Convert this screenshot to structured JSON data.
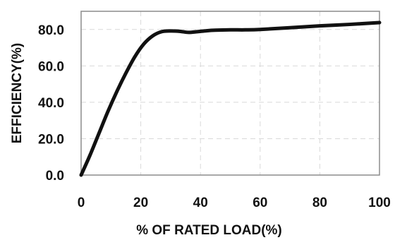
{
  "chart_data": {
    "type": "line",
    "title": "",
    "xlabel": "% OF RATED LOAD(%)",
    "ylabel": "EFFICIENCY(%)",
    "xlim": [
      0,
      100
    ],
    "ylim": [
      0,
      90
    ],
    "x_ticks": [
      0,
      20,
      40,
      60,
      80,
      100
    ],
    "x_tick_labels": [
      "0",
      "20",
      "40",
      "60",
      "80",
      "100"
    ],
    "y_ticks": [
      0,
      20,
      40,
      60,
      80
    ],
    "y_tick_labels": [
      "0.0",
      "20.0",
      "40.0",
      "60.0",
      "80.0"
    ],
    "grid": true,
    "legend": "none",
    "series": [
      {
        "color": "#111111",
        "x": [
          0,
          3,
          6,
          9,
          12,
          15,
          18,
          21,
          24,
          27,
          30,
          33,
          36,
          39,
          42,
          45,
          50,
          55,
          60,
          70,
          80,
          90,
          100
        ],
        "y": [
          0,
          11,
          23,
          35,
          46,
          56,
          65,
          72,
          76.5,
          78.8,
          79.2,
          79,
          78.4,
          78.8,
          79.3,
          79.6,
          79.8,
          79.8,
          80,
          81,
          82,
          82.8,
          83.8
        ]
      }
    ]
  }
}
